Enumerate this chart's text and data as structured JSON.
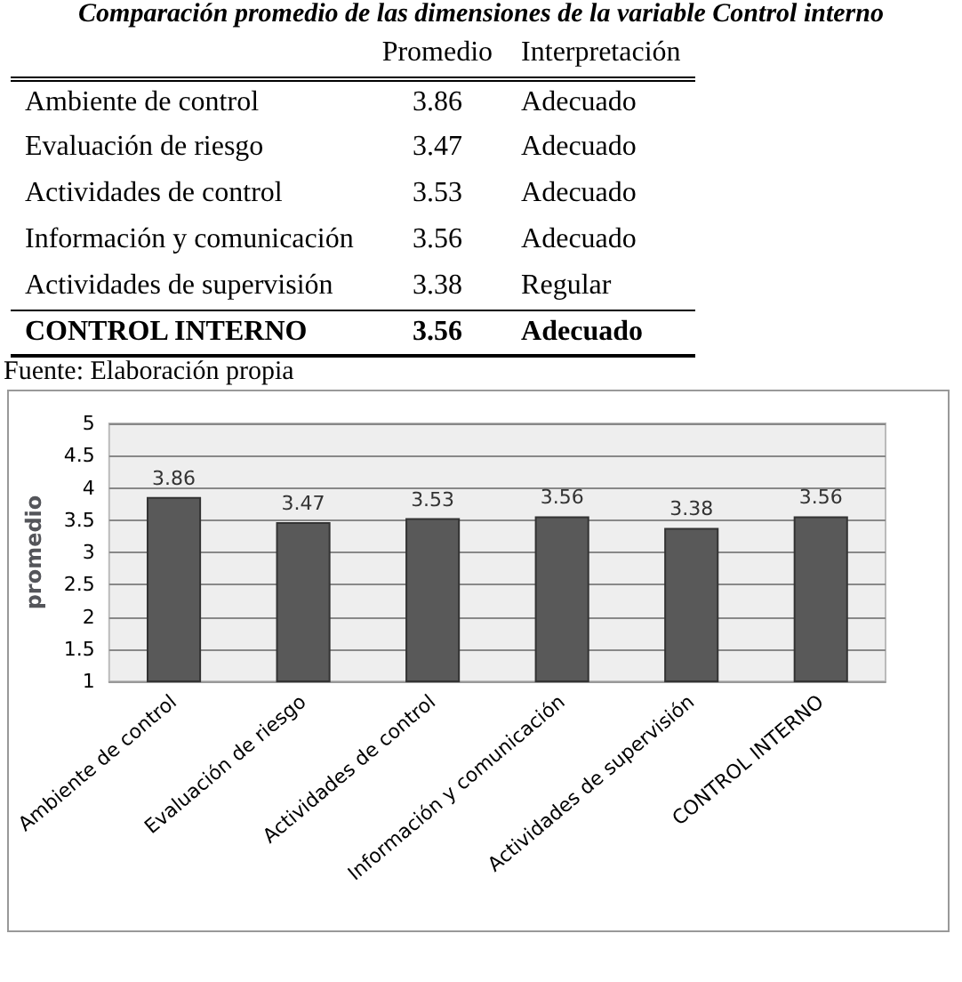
{
  "chart_data": {
    "type": "bar",
    "title": "Comparación promedio de las dimensiones de la variable Control interno",
    "categories": [
      "Ambiente de control",
      "Evaluación de riesgo",
      "Actividades de control",
      "Información y comunicación",
      "Actividades de supervisión",
      "CONTROL INTERNO"
    ],
    "values": [
      3.86,
      3.47,
      3.53,
      3.56,
      3.38,
      3.56
    ],
    "color": "#595959",
    "ylabel": "promedio",
    "ylim": [
      1,
      5
    ],
    "yticks": [
      1,
      1.5,
      2,
      2.5,
      3,
      3.5,
      4,
      4.5,
      5
    ],
    "grid": "y",
    "data_labels": true,
    "annotations": [
      "Promedio",
      "Interpretación",
      "3.86",
      "Adecuado",
      "3.47",
      "Adecuado",
      "3.53",
      "Adecuado",
      "3.56",
      "Adecuado",
      "3.38",
      "Regular",
      "3.56",
      "Adecuado",
      "Fuente: Elaboración propia"
    ]
  }
}
